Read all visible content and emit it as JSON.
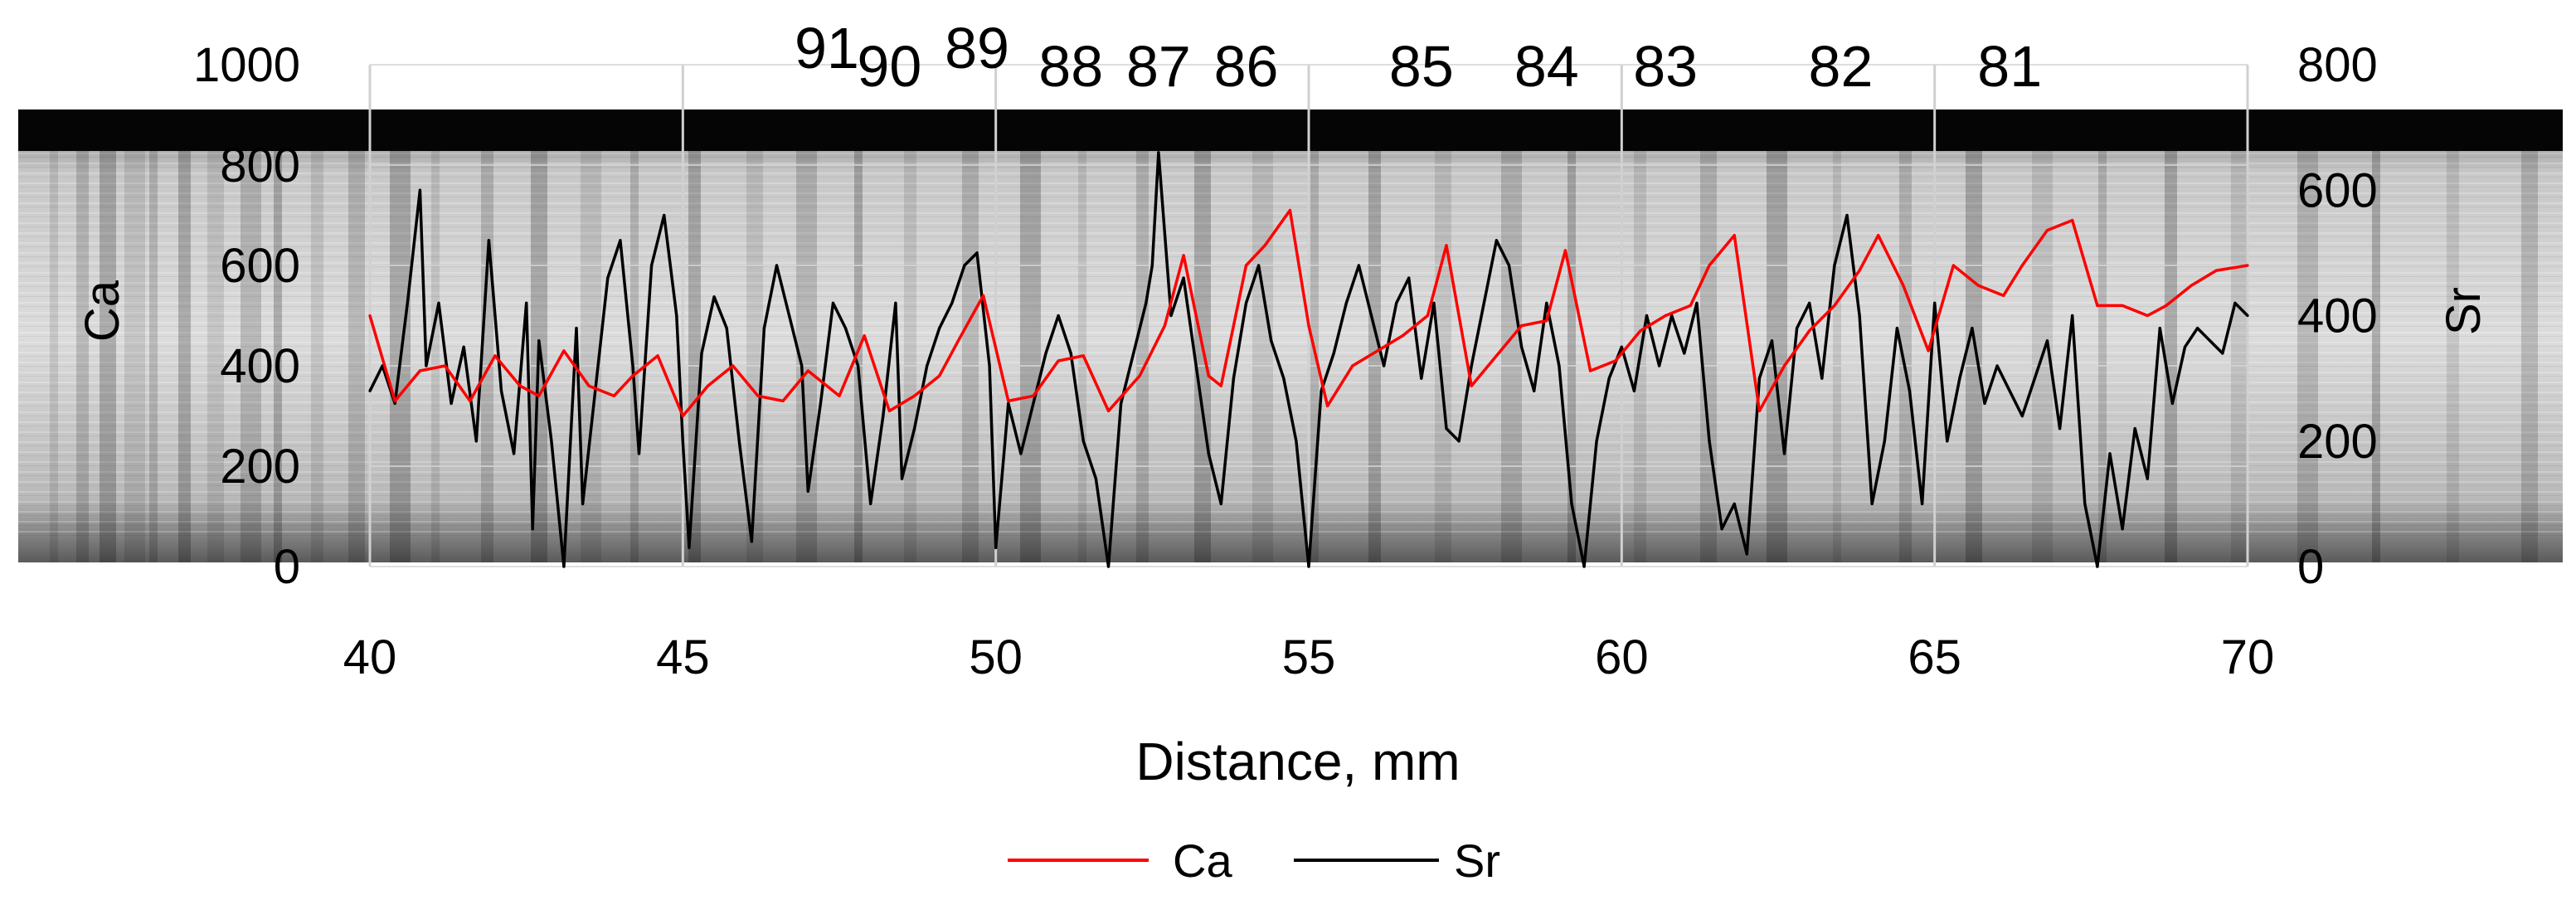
{
  "chart_data": {
    "type": "line",
    "title": "",
    "xlabel": "Distance, mm",
    "ylabel": "Ca",
    "y2label": "Sr",
    "xlim": [
      40,
      70
    ],
    "ylim": [
      0,
      1000
    ],
    "y2lim": [
      0,
      800
    ],
    "x_ticks": [
      40,
      45,
      50,
      55,
      60,
      65,
      70
    ],
    "y_ticks": [
      0,
      200,
      400,
      600,
      800,
      1000
    ],
    "y2_ticks": [
      0,
      200,
      400,
      600,
      800
    ],
    "grid": true,
    "legend_position": "bottom",
    "ring_labels": [
      {
        "text": "91",
        "x": 47.3,
        "row": "high"
      },
      {
        "text": "90",
        "x": 48.3,
        "row": "low"
      },
      {
        "text": "89",
        "x": 49.7,
        "row": "high"
      },
      {
        "text": "88",
        "x": 51.2,
        "row": "low"
      },
      {
        "text": "87",
        "x": 52.6,
        "row": "low"
      },
      {
        "text": "86",
        "x": 54.0,
        "row": "low"
      },
      {
        "text": "85",
        "x": 56.8,
        "row": "low"
      },
      {
        "text": "84",
        "x": 58.8,
        "row": "low"
      },
      {
        "text": "83",
        "x": 60.7,
        "row": "low"
      },
      {
        "text": "82",
        "x": 63.5,
        "row": "low"
      },
      {
        "text": "81",
        "x": 66.2,
        "row": "low"
      }
    ],
    "series": [
      {
        "name": "Ca",
        "axis": "left",
        "color": "#ff0000",
        "points": [
          [
            40.0,
            500
          ],
          [
            40.4,
            330
          ],
          [
            40.8,
            390
          ],
          [
            41.2,
            400
          ],
          [
            41.6,
            330
          ],
          [
            42.0,
            420
          ],
          [
            42.4,
            360
          ],
          [
            42.7,
            340
          ],
          [
            43.1,
            430
          ],
          [
            43.5,
            360
          ],
          [
            43.9,
            340
          ],
          [
            44.2,
            380
          ],
          [
            44.6,
            420
          ],
          [
            45.0,
            300
          ],
          [
            45.4,
            360
          ],
          [
            45.8,
            400
          ],
          [
            46.2,
            340
          ],
          [
            46.6,
            330
          ],
          [
            47.0,
            390
          ],
          [
            47.5,
            340
          ],
          [
            47.9,
            460
          ],
          [
            48.3,
            310
          ],
          [
            48.7,
            340
          ],
          [
            49.1,
            380
          ],
          [
            49.4,
            450
          ],
          [
            49.8,
            540
          ],
          [
            50.2,
            330
          ],
          [
            50.6,
            340
          ],
          [
            51.0,
            410
          ],
          [
            51.4,
            420
          ],
          [
            51.8,
            310
          ],
          [
            52.3,
            380
          ],
          [
            52.7,
            480
          ],
          [
            53.0,
            620
          ],
          [
            53.4,
            380
          ],
          [
            53.6,
            360
          ],
          [
            54.0,
            600
          ],
          [
            54.3,
            640
          ],
          [
            54.7,
            710
          ],
          [
            55.0,
            480
          ],
          [
            55.3,
            320
          ],
          [
            55.7,
            400
          ],
          [
            56.1,
            430
          ],
          [
            56.5,
            460
          ],
          [
            56.9,
            500
          ],
          [
            57.2,
            640
          ],
          [
            57.6,
            360
          ],
          [
            58.0,
            420
          ],
          [
            58.4,
            480
          ],
          [
            58.8,
            490
          ],
          [
            59.1,
            630
          ],
          [
            59.5,
            390
          ],
          [
            59.9,
            410
          ],
          [
            60.3,
            470
          ],
          [
            60.7,
            500
          ],
          [
            61.1,
            520
          ],
          [
            61.4,
            600
          ],
          [
            61.8,
            660
          ],
          [
            62.2,
            310
          ],
          [
            62.6,
            400
          ],
          [
            63.0,
            470
          ],
          [
            63.4,
            520
          ],
          [
            63.8,
            590
          ],
          [
            64.1,
            660
          ],
          [
            64.5,
            560
          ],
          [
            64.9,
            430
          ],
          [
            65.3,
            600
          ],
          [
            65.7,
            560
          ],
          [
            66.1,
            540
          ],
          [
            66.4,
            600
          ],
          [
            66.8,
            670
          ],
          [
            67.2,
            690
          ],
          [
            67.6,
            520
          ],
          [
            68.0,
            520
          ],
          [
            68.4,
            500
          ],
          [
            68.7,
            520
          ],
          [
            69.1,
            560
          ],
          [
            69.5,
            590
          ],
          [
            70.0,
            600
          ]
        ]
      },
      {
        "name": "Sr",
        "axis": "right",
        "color": "#000000",
        "points": [
          [
            40.0,
            280
          ],
          [
            40.2,
            320
          ],
          [
            40.4,
            260
          ],
          [
            40.6,
            420
          ],
          [
            40.8,
            600
          ],
          [
            40.9,
            320
          ],
          [
            41.1,
            420
          ],
          [
            41.3,
            260
          ],
          [
            41.5,
            350
          ],
          [
            41.7,
            200
          ],
          [
            41.9,
            520
          ],
          [
            42.1,
            280
          ],
          [
            42.3,
            180
          ],
          [
            42.5,
            420
          ],
          [
            42.6,
            60
          ],
          [
            42.7,
            360
          ],
          [
            42.9,
            200
          ],
          [
            43.1,
            0
          ],
          [
            43.3,
            380
          ],
          [
            43.4,
            100
          ],
          [
            43.6,
            280
          ],
          [
            43.8,
            460
          ],
          [
            44.0,
            520
          ],
          [
            44.2,
            320
          ],
          [
            44.3,
            180
          ],
          [
            44.5,
            480
          ],
          [
            44.7,
            560
          ],
          [
            44.9,
            400
          ],
          [
            45.0,
            200
          ],
          [
            45.1,
            30
          ],
          [
            45.3,
            340
          ],
          [
            45.5,
            430
          ],
          [
            45.7,
            380
          ],
          [
            45.9,
            200
          ],
          [
            46.1,
            40
          ],
          [
            46.3,
            380
          ],
          [
            46.5,
            480
          ],
          [
            46.7,
            400
          ],
          [
            46.9,
            320
          ],
          [
            47.0,
            120
          ],
          [
            47.2,
            260
          ],
          [
            47.4,
            420
          ],
          [
            47.6,
            380
          ],
          [
            47.8,
            320
          ],
          [
            48.0,
            100
          ],
          [
            48.2,
            240
          ],
          [
            48.4,
            420
          ],
          [
            48.5,
            140
          ],
          [
            48.7,
            220
          ],
          [
            48.9,
            320
          ],
          [
            49.1,
            380
          ],
          [
            49.3,
            420
          ],
          [
            49.5,
            480
          ],
          [
            49.7,
            500
          ],
          [
            49.9,
            320
          ],
          [
            50.0,
            30
          ],
          [
            50.2,
            260
          ],
          [
            50.4,
            180
          ],
          [
            50.6,
            260
          ],
          [
            50.8,
            340
          ],
          [
            51.0,
            400
          ],
          [
            51.2,
            340
          ],
          [
            51.4,
            200
          ],
          [
            51.6,
            140
          ],
          [
            51.8,
            0
          ],
          [
            52.0,
            260
          ],
          [
            52.2,
            340
          ],
          [
            52.4,
            420
          ],
          [
            52.5,
            480
          ],
          [
            52.6,
            660
          ],
          [
            52.8,
            400
          ],
          [
            53.0,
            460
          ],
          [
            53.2,
            320
          ],
          [
            53.4,
            180
          ],
          [
            53.6,
            100
          ],
          [
            53.8,
            300
          ],
          [
            54.0,
            420
          ],
          [
            54.2,
            480
          ],
          [
            54.4,
            360
          ],
          [
            54.6,
            300
          ],
          [
            54.8,
            200
          ],
          [
            55.0,
            0
          ],
          [
            55.2,
            280
          ],
          [
            55.4,
            340
          ],
          [
            55.6,
            420
          ],
          [
            55.8,
            480
          ],
          [
            56.0,
            400
          ],
          [
            56.2,
            320
          ],
          [
            56.4,
            420
          ],
          [
            56.6,
            460
          ],
          [
            56.8,
            300
          ],
          [
            57.0,
            420
          ],
          [
            57.2,
            220
          ],
          [
            57.4,
            200
          ],
          [
            57.6,
            320
          ],
          [
            57.8,
            420
          ],
          [
            58.0,
            520
          ],
          [
            58.2,
            480
          ],
          [
            58.4,
            350
          ],
          [
            58.6,
            280
          ],
          [
            58.8,
            420
          ],
          [
            59.0,
            320
          ],
          [
            59.2,
            100
          ],
          [
            59.4,
            0
          ],
          [
            59.6,
            200
          ],
          [
            59.8,
            300
          ],
          [
            60.0,
            350
          ],
          [
            60.2,
            280
          ],
          [
            60.4,
            400
          ],
          [
            60.6,
            320
          ],
          [
            60.8,
            400
          ],
          [
            61.0,
            340
          ],
          [
            61.2,
            420
          ],
          [
            61.4,
            200
          ],
          [
            61.6,
            60
          ],
          [
            61.8,
            100
          ],
          [
            62.0,
            20
          ],
          [
            62.2,
            300
          ],
          [
            62.4,
            360
          ],
          [
            62.6,
            180
          ],
          [
            62.8,
            380
          ],
          [
            63.0,
            420
          ],
          [
            63.2,
            300
          ],
          [
            63.4,
            480
          ],
          [
            63.6,
            560
          ],
          [
            63.8,
            400
          ],
          [
            64.0,
            100
          ],
          [
            64.2,
            200
          ],
          [
            64.4,
            380
          ],
          [
            64.6,
            280
          ],
          [
            64.8,
            100
          ],
          [
            65.0,
            420
          ],
          [
            65.2,
            200
          ],
          [
            65.4,
            300
          ],
          [
            65.6,
            380
          ],
          [
            65.8,
            260
          ],
          [
            66.0,
            320
          ],
          [
            66.2,
            280
          ],
          [
            66.4,
            240
          ],
          [
            66.6,
            300
          ],
          [
            66.8,
            360
          ],
          [
            67.0,
            220
          ],
          [
            67.2,
            400
          ],
          [
            67.4,
            100
          ],
          [
            67.6,
            0
          ],
          [
            67.8,
            180
          ],
          [
            68.0,
            60
          ],
          [
            68.2,
            220
          ],
          [
            68.4,
            140
          ],
          [
            68.6,
            380
          ],
          [
            68.8,
            260
          ],
          [
            69.0,
            350
          ],
          [
            69.2,
            380
          ],
          [
            69.4,
            360
          ],
          [
            69.6,
            340
          ],
          [
            69.8,
            420
          ],
          [
            70.0,
            400
          ]
        ]
      }
    ]
  }
}
